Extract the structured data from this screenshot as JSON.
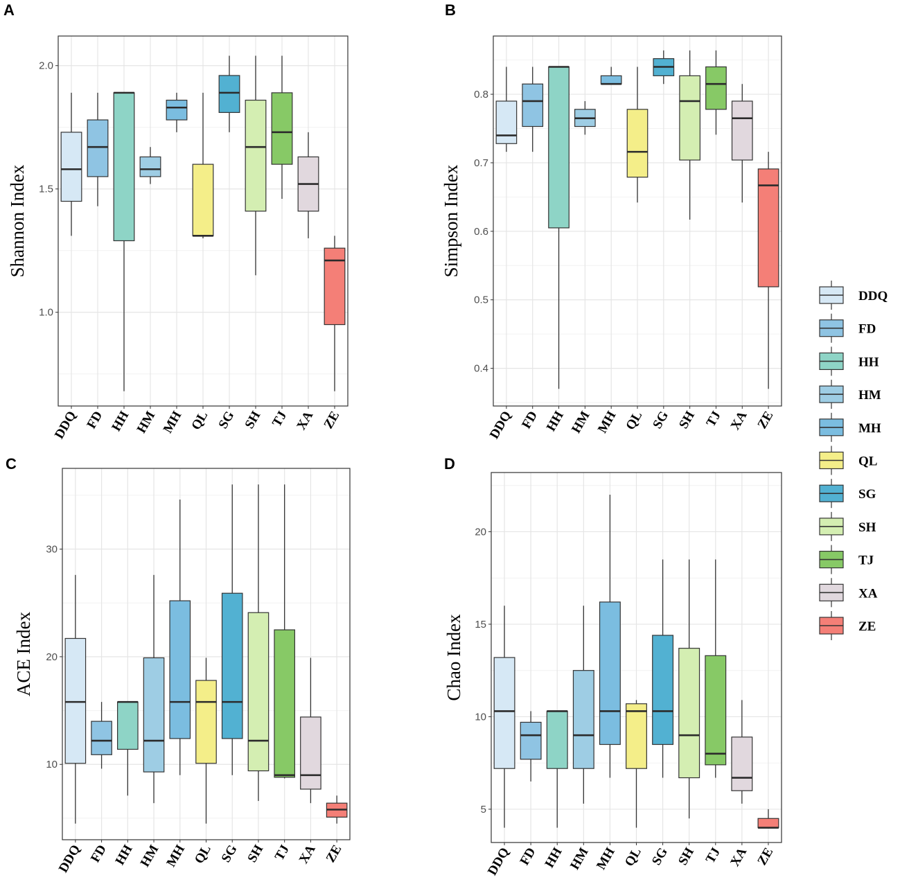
{
  "categories": [
    "DDQ",
    "FD",
    "HH",
    "HM",
    "MH",
    "QL",
    "SG",
    "SH",
    "TJ",
    "XA",
    "ZE"
  ],
  "colors": {
    "DDQ": "#d6e8f5",
    "FD": "#8fc4e3",
    "HH": "#8ed4c6",
    "HM": "#9ecde4",
    "MH": "#7bbde0",
    "QL": "#f4ee89",
    "SG": "#52b1d2",
    "SH": "#d4eeb2",
    "TJ": "#87c966",
    "XA": "#e1d8de",
    "ZE": "#f47f77"
  },
  "legend": {
    "items": [
      "DDQ",
      "FD",
      "HH",
      "HM",
      "MH",
      "QL",
      "SG",
      "SH",
      "TJ",
      "XA",
      "ZE"
    ]
  },
  "chart_data": [
    {
      "panel": "A",
      "type": "box",
      "ylabel": "Shannon Index",
      "ylim": [
        0.62,
        2.12
      ],
      "yticks": [
        1.0,
        1.5,
        2.0
      ],
      "ytick_labels": [
        "1.0",
        "1.5",
        "2.0"
      ],
      "boxes": [
        {
          "cat": "DDQ",
          "min": 1.31,
          "q1": 1.45,
          "median": 1.58,
          "q3": 1.73,
          "max": 1.89
        },
        {
          "cat": "FD",
          "min": 1.43,
          "q1": 1.55,
          "median": 1.67,
          "q3": 1.78,
          "max": 1.89
        },
        {
          "cat": "HH",
          "min": 0.68,
          "q1": 1.29,
          "median": 1.89,
          "q3": 1.89,
          "max": 1.89
        },
        {
          "cat": "HM",
          "min": 1.52,
          "q1": 1.55,
          "median": 1.58,
          "q3": 1.63,
          "max": 1.67
        },
        {
          "cat": "MH",
          "min": 1.73,
          "q1": 1.78,
          "median": 1.83,
          "q3": 1.86,
          "max": 1.89
        },
        {
          "cat": "QL",
          "min": 1.3,
          "q1": 1.31,
          "median": 1.31,
          "q3": 1.6,
          "max": 1.89
        },
        {
          "cat": "SG",
          "min": 1.73,
          "q1": 1.81,
          "median": 1.89,
          "q3": 1.96,
          "max": 2.04
        },
        {
          "cat": "SH",
          "min": 1.15,
          "q1": 1.41,
          "median": 1.67,
          "q3": 1.86,
          "max": 2.04
        },
        {
          "cat": "TJ",
          "min": 1.46,
          "q1": 1.6,
          "median": 1.73,
          "q3": 1.89,
          "max": 2.04
        },
        {
          "cat": "XA",
          "min": 1.3,
          "q1": 1.41,
          "median": 1.52,
          "q3": 1.63,
          "max": 1.73
        },
        {
          "cat": "ZE",
          "min": 0.68,
          "q1": 0.95,
          "median": 1.21,
          "q3": 1.26,
          "max": 1.31
        }
      ]
    },
    {
      "panel": "B",
      "type": "box",
      "ylabel": "Simpson Index",
      "ylim": [
        0.345,
        0.885
      ],
      "yticks": [
        0.4,
        0.5,
        0.6,
        0.7,
        0.8
      ],
      "ytick_labels": [
        "0.4",
        "0.5",
        "0.6",
        "0.7",
        "0.8"
      ],
      "boxes": [
        {
          "cat": "DDQ",
          "min": 0.716,
          "q1": 0.728,
          "median": 0.74,
          "q3": 0.79,
          "max": 0.84
        },
        {
          "cat": "FD",
          "min": 0.716,
          "q1": 0.753,
          "median": 0.79,
          "q3": 0.815,
          "max": 0.84
        },
        {
          "cat": "HH",
          "min": 0.37,
          "q1": 0.605,
          "median": 0.84,
          "q3": 0.84,
          "max": 0.84
        },
        {
          "cat": "HM",
          "min": 0.741,
          "q1": 0.753,
          "median": 0.765,
          "q3": 0.778,
          "max": 0.79
        },
        {
          "cat": "MH",
          "min": 0.815,
          "q1": 0.815,
          "median": 0.815,
          "q3": 0.827,
          "max": 0.84
        },
        {
          "cat": "QL",
          "min": 0.642,
          "q1": 0.679,
          "median": 0.716,
          "q3": 0.778,
          "max": 0.84
        },
        {
          "cat": "SG",
          "min": 0.815,
          "q1": 0.827,
          "median": 0.84,
          "q3": 0.852,
          "max": 0.864
        },
        {
          "cat": "SH",
          "min": 0.617,
          "q1": 0.704,
          "median": 0.79,
          "q3": 0.827,
          "max": 0.864
        },
        {
          "cat": "TJ",
          "min": 0.741,
          "q1": 0.778,
          "median": 0.815,
          "q3": 0.84,
          "max": 0.864
        },
        {
          "cat": "XA",
          "min": 0.642,
          "q1": 0.704,
          "median": 0.765,
          "q3": 0.79,
          "max": 0.815
        },
        {
          "cat": "ZE",
          "min": 0.37,
          "q1": 0.519,
          "median": 0.667,
          "q3": 0.691,
          "max": 0.716
        }
      ]
    },
    {
      "panel": "C",
      "type": "box",
      "ylabel": "ACE Index",
      "ylim": [
        3.0,
        37.5
      ],
      "yticks": [
        10,
        20,
        30
      ],
      "ytick_labels": [
        "10",
        "20",
        "30"
      ],
      "boxes": [
        {
          "cat": "DDQ",
          "min": 4.5,
          "q1": 10.1,
          "median": 15.8,
          "q3": 21.7,
          "max": 27.6
        },
        {
          "cat": "FD",
          "min": 9.6,
          "q1": 10.9,
          "median": 12.2,
          "q3": 14.0,
          "max": 15.8
        },
        {
          "cat": "HH",
          "min": 7.1,
          "q1": 11.4,
          "median": 15.8,
          "q3": 15.8,
          "max": 15.8
        },
        {
          "cat": "HM",
          "min": 6.4,
          "q1": 9.3,
          "median": 12.2,
          "q3": 19.9,
          "max": 27.6
        },
        {
          "cat": "MH",
          "min": 9.0,
          "q1": 12.4,
          "median": 15.8,
          "q3": 25.2,
          "max": 34.6
        },
        {
          "cat": "QL",
          "min": 4.5,
          "q1": 10.1,
          "median": 15.8,
          "q3": 17.8,
          "max": 19.9
        },
        {
          "cat": "SG",
          "min": 9.0,
          "q1": 12.4,
          "median": 15.8,
          "q3": 25.9,
          "max": 36.0
        },
        {
          "cat": "SH",
          "min": 6.6,
          "q1": 9.4,
          "median": 12.2,
          "q3": 24.1,
          "max": 36.0
        },
        {
          "cat": "TJ",
          "min": 8.7,
          "q1": 8.8,
          "median": 9.0,
          "q3": 22.5,
          "max": 36.0
        },
        {
          "cat": "XA",
          "min": 6.4,
          "q1": 7.7,
          "median": 9.0,
          "q3": 14.4,
          "max": 19.9
        },
        {
          "cat": "ZE",
          "min": 4.5,
          "q1": 5.1,
          "median": 5.8,
          "q3": 6.4,
          "max": 7.1
        }
      ]
    },
    {
      "panel": "D",
      "type": "box",
      "ylabel": "Chao Index",
      "ylim": [
        3.2,
        23.2
      ],
      "yticks": [
        5,
        10,
        15,
        20
      ],
      "ytick_labels": [
        "5",
        "10",
        "15",
        "20"
      ],
      "boxes": [
        {
          "cat": "DDQ",
          "min": 4.0,
          "q1": 7.2,
          "median": 10.3,
          "q3": 13.2,
          "max": 16.0
        },
        {
          "cat": "FD",
          "min": 6.5,
          "q1": 7.7,
          "median": 9.0,
          "q3": 9.7,
          "max": 10.3
        },
        {
          "cat": "HH",
          "min": 4.0,
          "q1": 7.2,
          "median": 10.3,
          "q3": 10.3,
          "max": 10.3
        },
        {
          "cat": "HM",
          "min": 5.3,
          "q1": 7.2,
          "median": 9.0,
          "q3": 12.5,
          "max": 16.0
        },
        {
          "cat": "MH",
          "min": 6.7,
          "q1": 8.5,
          "median": 10.3,
          "q3": 16.2,
          "max": 22.0
        },
        {
          "cat": "QL",
          "min": 4.0,
          "q1": 7.2,
          "median": 10.3,
          "q3": 10.7,
          "max": 10.9
        },
        {
          "cat": "SG",
          "min": 6.7,
          "q1": 8.5,
          "median": 10.3,
          "q3": 14.4,
          "max": 18.5
        },
        {
          "cat": "SH",
          "min": 4.5,
          "q1": 6.7,
          "median": 9.0,
          "q3": 13.7,
          "max": 18.5
        },
        {
          "cat": "TJ",
          "min": 6.7,
          "q1": 7.4,
          "median": 8.0,
          "q3": 13.3,
          "max": 18.5
        },
        {
          "cat": "XA",
          "min": 5.3,
          "q1": 6.0,
          "median": 6.7,
          "q3": 8.9,
          "max": 10.9
        },
        {
          "cat": "ZE",
          "min": 4.0,
          "q1": 4.0,
          "median": 4.0,
          "q3": 4.5,
          "max": 5.0
        }
      ]
    }
  ]
}
